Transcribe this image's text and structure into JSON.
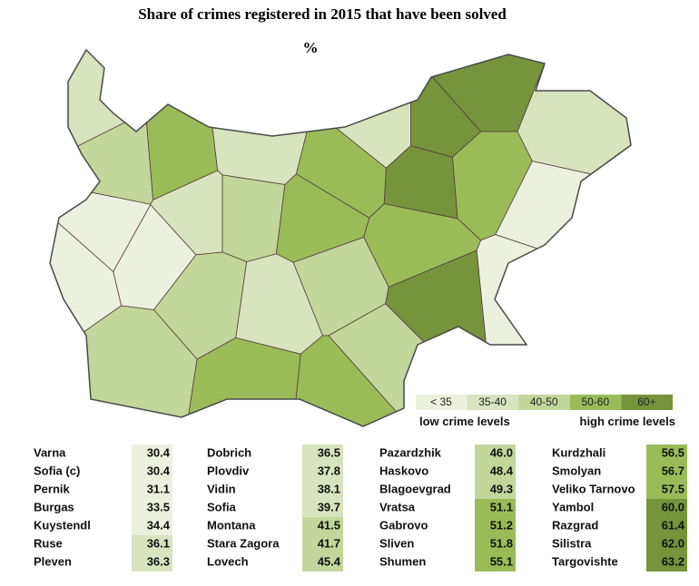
{
  "header": {
    "title": "Share of crimes registered in 2015 that have been solved",
    "subtitle": "%"
  },
  "legend": {
    "items": [
      {
        "label": "< 35",
        "color": "#ebf1de"
      },
      {
        "label": "35-40",
        "color": "#d7e4bd"
      },
      {
        "label": "40-50",
        "color": "#c3d69b"
      },
      {
        "label": "50-60",
        "color": "#9bbb59"
      },
      {
        "label": "60+",
        "color": "#77933c"
      }
    ],
    "low": "low crime levels",
    "high": "high crime levels"
  },
  "table": {
    "columns": [
      [
        {
          "name": "Varna",
          "value": 30.4,
          "color": "#ebf1de"
        },
        {
          "name": "Sofia (c)",
          "value": 30.4,
          "color": "#ebf1de"
        },
        {
          "name": "Pernik",
          "value": 31.1,
          "color": "#ebf1de"
        },
        {
          "name": "Burgas",
          "value": 33.5,
          "color": "#ebf1de"
        },
        {
          "name": "Kuystendl",
          "value": 34.4,
          "color": "#ebf1de"
        },
        {
          "name": "Ruse",
          "value": 36.1,
          "color": "#d7e4bd"
        },
        {
          "name": "Pleven",
          "value": 36.3,
          "color": "#d7e4bd"
        }
      ],
      [
        {
          "name": "Dobrich",
          "value": 36.5,
          "color": "#d7e4bd"
        },
        {
          "name": "Plovdiv",
          "value": 37.8,
          "color": "#d7e4bd"
        },
        {
          "name": "Vidin",
          "value": 38.1,
          "color": "#d7e4bd"
        },
        {
          "name": "Sofia",
          "value": 39.7,
          "color": "#d7e4bd"
        },
        {
          "name": "Montana",
          "value": 41.5,
          "color": "#c3d69b"
        },
        {
          "name": "Stara Zagora",
          "value": 41.7,
          "color": "#c3d69b"
        },
        {
          "name": "Lovech",
          "value": 45.4,
          "color": "#c3d69b"
        }
      ],
      [
        {
          "name": "Pazardzhik",
          "value": 46,
          "label": "46.0",
          "color": "#c3d69b"
        },
        {
          "name": "Haskovo",
          "value": 48.4,
          "color": "#c3d69b"
        },
        {
          "name": "Blagoevgrad",
          "value": 49.3,
          "color": "#c3d69b"
        },
        {
          "name": "Vratsa",
          "value": 51.1,
          "color": "#9bbb59"
        },
        {
          "name": "Gabrovo",
          "value": 51.2,
          "color": "#9bbb59"
        },
        {
          "name": "Sliven",
          "value": 51.8,
          "color": "#9bbb59"
        },
        {
          "name": "Shumen",
          "value": 55.1,
          "color": "#9bbb59"
        }
      ],
      [
        {
          "name": "Kurdzhali",
          "value": 56.5,
          "color": "#9bbb59"
        },
        {
          "name": "Smolyan",
          "value": 56.7,
          "color": "#9bbb59"
        },
        {
          "name": "Veliko Tarnovo",
          "value": 57.5,
          "color": "#9bbb59"
        },
        {
          "name": "Yambol",
          "value": 60,
          "label": "60.0",
          "color": "#77933c"
        },
        {
          "name": "Razgrad",
          "value": 61.4,
          "color": "#77933c"
        },
        {
          "name": "Silistra",
          "value": 62,
          "label": "62.0",
          "color": "#77933c"
        },
        {
          "name": "Targovishte",
          "value": 63.2,
          "color": "#77933c"
        }
      ]
    ]
  }
}
